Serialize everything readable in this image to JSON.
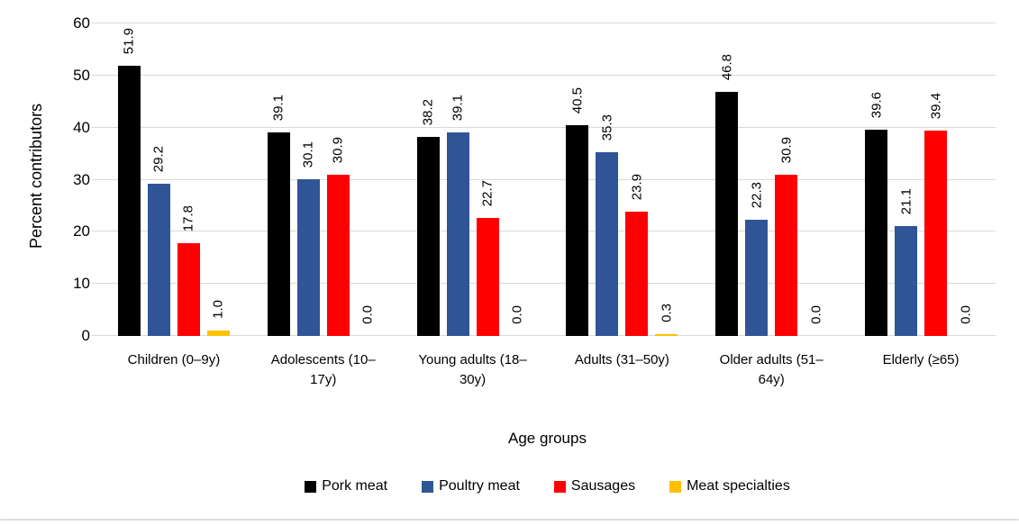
{
  "chart_data": {
    "type": "bar",
    "title": "",
    "xlabel": "Age groups",
    "ylabel": "Percent contributors",
    "ylim": [
      0,
      60
    ],
    "yticks": [
      0,
      10,
      20,
      30,
      40,
      50,
      60
    ],
    "grid": true,
    "legend_position": "bottom",
    "value_label_decimals": 1,
    "value_label_rotation": "vertical-bottom-to-top",
    "categories": [
      "Children (0–9y)",
      "Adolescents (10–17y)",
      "Young adults (18–30y)",
      "Adults (31–50y)",
      "Older adults (51–64y)",
      "Elderly (≥65)"
    ],
    "series": [
      {
        "name": "Pork meat",
        "color": "#000000",
        "values": [
          51.9,
          39.1,
          38.2,
          40.5,
          46.8,
          39.6
        ]
      },
      {
        "name": "Poultry meat",
        "color": "#2F5597",
        "values": [
          29.2,
          30.1,
          39.1,
          35.3,
          22.3,
          21.1
        ]
      },
      {
        "name": "Sausages",
        "color": "#FF0000",
        "values": [
          17.8,
          30.9,
          22.7,
          23.9,
          30.9,
          39.4
        ]
      },
      {
        "name": "Meat specialties",
        "color": "#FFC000",
        "values": [
          1.0,
          0.0,
          0.0,
          0.3,
          0.0,
          0.0
        ]
      }
    ],
    "colors": {
      "gridline": "#D9D9D9",
      "text": "#000000",
      "divider": "#DEDEDE",
      "background": "#FFFFFF"
    }
  }
}
